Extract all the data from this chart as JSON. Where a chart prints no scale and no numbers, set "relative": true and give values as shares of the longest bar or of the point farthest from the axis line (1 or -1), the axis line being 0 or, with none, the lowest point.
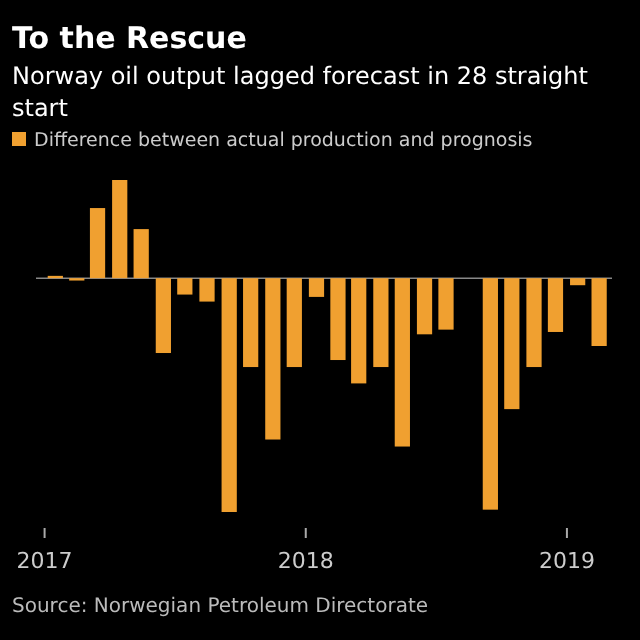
{
  "chart_data": {
    "type": "bar",
    "title": "To the Rescue",
    "subtitle": "Norway oil output lagged forecast in 28 straight\nstart",
    "relative": true,
    "x": [
      "2017-01-16",
      "2017-02-15",
      "2017-03-16",
      "2017-04-16",
      "2017-05-16",
      "2017-06-16",
      "2017-07-16",
      "2017-08-16",
      "2017-09-16",
      "2017-10-16",
      "2017-11-16",
      "2017-12-16",
      "2018-01-16",
      "2018-02-15",
      "2018-03-16",
      "2018-04-16",
      "2018-05-16",
      "2018-06-16",
      "2018-07-16",
      "2018-08-16",
      "2018-09-16",
      "2018-10-16",
      "2018-11-16",
      "2018-12-16",
      "2019-01-16",
      "2019-02-15"
    ],
    "xlim": [
      "2016-12-20",
      "2019-03-05"
    ],
    "xticks": [
      {
        "value": "2017",
        "label": "2017"
      },
      {
        "value": "2018",
        "label": "2018"
      },
      {
        "value": "2019",
        "label": "2019"
      }
    ],
    "series": [
      {
        "name": "Difference between actual production and prognosis",
        "color": "#f0a030",
        "values": [
          0.01,
          -0.01,
          0.3,
          0.42,
          0.21,
          -0.32,
          -0.07,
          -0.1,
          -1,
          -0.38,
          -0.69,
          -0.38,
          -0.08,
          -0.35,
          -0.45,
          -0.38,
          -0.72,
          -0.24,
          -0.22,
          0,
          -0.99,
          -0.56,
          -0.38,
          -0.23,
          -0.03,
          -0.29
        ]
      }
    ],
    "legend": "top left",
    "grid": false,
    "annotations": [
      "Source: Norwegian Petroleum Directorate"
    ]
  }
}
